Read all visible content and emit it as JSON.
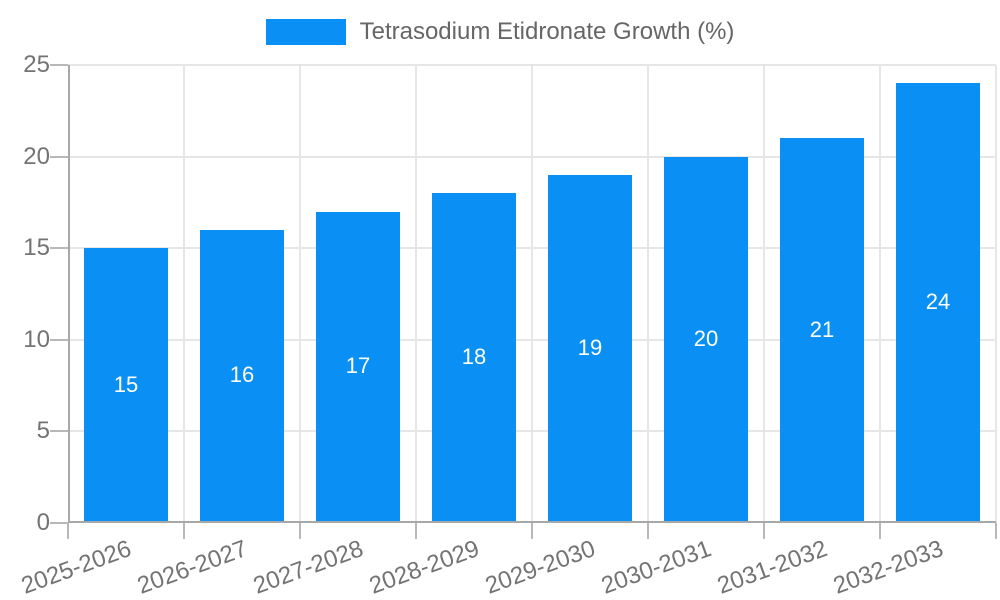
{
  "legend": {
    "label": "Tetrasodium Etidronate Growth (%)"
  },
  "chart_data": {
    "type": "bar",
    "title": "Tetrasodium Etidronate Growth (%)",
    "categories": [
      "2025-2026",
      "2026-2027",
      "2027-2028",
      "2028-2029",
      "2029-2030",
      "2030-2031",
      "2031-2032",
      "2032-2033"
    ],
    "series": [
      {
        "name": "Tetrasodium Etidronate Growth (%)",
        "values": [
          15,
          16,
          17,
          18,
          19,
          20,
          21,
          24
        ]
      }
    ],
    "xlabel": "",
    "ylabel": "",
    "ylim": [
      0,
      25
    ],
    "yticks": [
      0,
      5,
      10,
      15,
      20,
      25
    ],
    "grid": true,
    "legend_position": "top-center",
    "value_labels": "inside-middle",
    "x_label_rotation_deg": -20,
    "colors": {
      "bar": "#0a90f5",
      "grid": "#e6e6e6",
      "axis": "#a8a8a8",
      "tick": "#b8b8b8",
      "tick_label": "#737373",
      "legend_text": "#666666",
      "bar_value_text": "#ffffff",
      "background": "#ffffff"
    }
  }
}
